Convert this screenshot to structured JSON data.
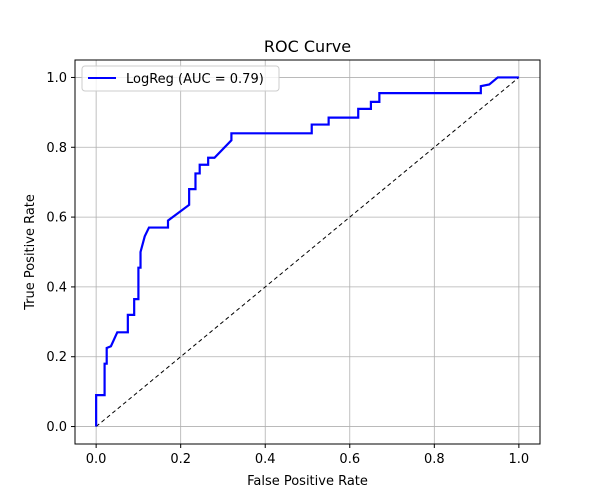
{
  "chart_data": {
    "type": "line",
    "title": "ROC Curve",
    "xlabel": "False Positive Rate",
    "ylabel": "True Positive Rate",
    "xlim": [
      -0.05,
      1.05
    ],
    "ylim": [
      -0.05,
      1.05
    ],
    "xticks": [
      "0.0",
      "0.2",
      "0.4",
      "0.6",
      "0.8",
      "1.0"
    ],
    "yticks": [
      "0.0",
      "0.2",
      "0.4",
      "0.6",
      "0.8",
      "1.0"
    ],
    "grid": true,
    "legend_position": "top-left",
    "series": [
      {
        "name": "LogReg (AUC = 0.79)",
        "color": "#0000ff",
        "style": "solid",
        "x": [
          0.0,
          0.0,
          0.02,
          0.02,
          0.025,
          0.025,
          0.035,
          0.05,
          0.075,
          0.075,
          0.09,
          0.09,
          0.1,
          0.1,
          0.105,
          0.105,
          0.115,
          0.125,
          0.17,
          0.17,
          0.22,
          0.22,
          0.235,
          0.235,
          0.245,
          0.245,
          0.265,
          0.265,
          0.28,
          0.32,
          0.32,
          0.51,
          0.51,
          0.55,
          0.55,
          0.62,
          0.62,
          0.65,
          0.65,
          0.67,
          0.67,
          0.91,
          0.91,
          0.93,
          0.95,
          1.0
        ],
        "y": [
          0.0,
          0.09,
          0.09,
          0.18,
          0.18,
          0.225,
          0.23,
          0.27,
          0.27,
          0.32,
          0.32,
          0.365,
          0.365,
          0.455,
          0.455,
          0.5,
          0.545,
          0.57,
          0.57,
          0.59,
          0.635,
          0.68,
          0.68,
          0.725,
          0.725,
          0.75,
          0.75,
          0.77,
          0.77,
          0.82,
          0.84,
          0.84,
          0.865,
          0.865,
          0.885,
          0.885,
          0.91,
          0.91,
          0.93,
          0.93,
          0.955,
          0.955,
          0.975,
          0.98,
          1.0,
          1.0
        ]
      }
    ],
    "reference_line": {
      "x": [
        0.0,
        1.0
      ],
      "y": [
        0.0,
        1.0
      ],
      "color": "#000000",
      "style": "dashed"
    }
  }
}
